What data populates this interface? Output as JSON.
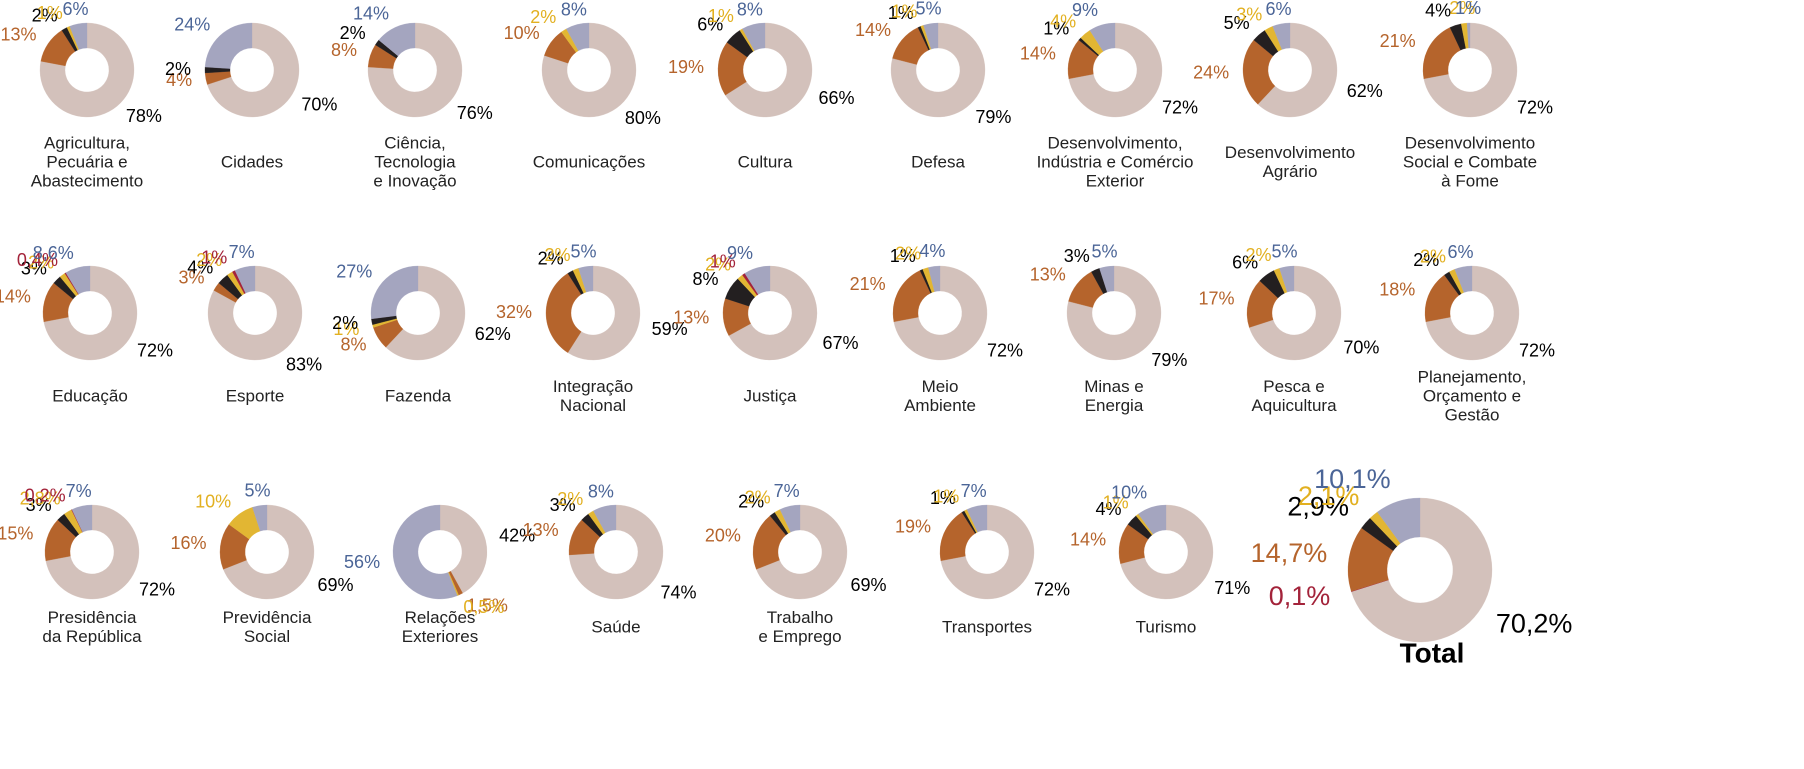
{
  "chart_data": [
    {
      "type": "donut",
      "title": [
        "Agricultura,",
        "Pecuária e",
        "Abastecimento"
      ],
      "values": [
        78,
        13,
        2,
        1,
        6
      ],
      "value_labels": [
        "78%",
        "13%",
        "2%",
        "1%",
        "6%"
      ],
      "colors": [
        "#d3c1bb",
        "#b5642c",
        "#231f20",
        "#e2b633",
        "#a4a5bf"
      ],
      "label_colors": [
        "#000000",
        "#b5642c",
        "#000000",
        "#e2b020",
        "#4b6597"
      ]
    },
    {
      "type": "donut",
      "title": [
        "Cidades"
      ],
      "values": [
        70,
        4,
        2,
        24
      ],
      "value_labels": [
        "70%",
        "4%",
        "2%",
        "24%"
      ],
      "colors": [
        "#d3c1bb",
        "#b5642c",
        "#231f20",
        "#a4a5bf"
      ],
      "label_colors": [
        "#000000",
        "#b5642c",
        "#000000",
        "#4b6597"
      ]
    },
    {
      "type": "donut",
      "title": [
        "Ciência,",
        "Tecnologia",
        "e Inovação"
      ],
      "values": [
        76,
        8,
        2,
        14
      ],
      "value_labels": [
        "76%",
        "8%",
        "2%",
        "14%"
      ],
      "colors": [
        "#d3c1bb",
        "#b5642c",
        "#231f20",
        "#a4a5bf"
      ],
      "label_colors": [
        "#000000",
        "#b5642c",
        "#000000",
        "#4b6597"
      ]
    },
    {
      "type": "donut",
      "title": [
        "Comunicações"
      ],
      "values": [
        80,
        10,
        2,
        8
      ],
      "value_labels": [
        "80%",
        "10%",
        "2%",
        "8%"
      ],
      "colors": [
        "#d3c1bb",
        "#b5642c",
        "#e2b633",
        "#a4a5bf"
      ],
      "label_colors": [
        "#000000",
        "#b5642c",
        "#e2b020",
        "#4b6597"
      ]
    },
    {
      "type": "donut",
      "title": [
        "Cultura"
      ],
      "values": [
        66,
        19,
        6,
        1,
        8
      ],
      "value_labels": [
        "66%",
        "19%",
        "6%",
        "1%",
        "8%"
      ],
      "colors": [
        "#d3c1bb",
        "#b5642c",
        "#231f20",
        "#e2b633",
        "#a4a5bf"
      ],
      "label_colors": [
        "#000000",
        "#b5642c",
        "#000000",
        "#e2b020",
        "#4b6597"
      ]
    },
    {
      "type": "donut",
      "title": [
        "Defesa"
      ],
      "values": [
        79,
        14,
        1,
        1,
        5
      ],
      "value_labels": [
        "79%",
        "14%",
        "1%",
        "1%",
        "5%"
      ],
      "colors": [
        "#d3c1bb",
        "#b5642c",
        "#231f20",
        "#e2b633",
        "#a4a5bf"
      ],
      "label_colors": [
        "#000000",
        "#b5642c",
        "#000000",
        "#e2b020",
        "#4b6597"
      ]
    },
    {
      "type": "donut",
      "title": [
        "Desenvolvimento,",
        "Indústria e Comércio",
        "Exterior"
      ],
      "values": [
        72,
        14,
        1,
        4,
        9
      ],
      "value_labels": [
        "72%",
        "14%",
        "1%",
        "4%",
        "9%"
      ],
      "colors": [
        "#d3c1bb",
        "#b5642c",
        "#231f20",
        "#e2b633",
        "#a4a5bf"
      ],
      "label_colors": [
        "#000000",
        "#b5642c",
        "#000000",
        "#e2b020",
        "#4b6597"
      ]
    },
    {
      "type": "donut",
      "title": [
        "Desenvolvimento",
        "Agrário"
      ],
      "values": [
        62,
        24,
        5,
        3,
        6
      ],
      "value_labels": [
        "62%",
        "24%",
        "5%",
        "3%",
        "6%"
      ],
      "colors": [
        "#d3c1bb",
        "#b5642c",
        "#231f20",
        "#e2b633",
        "#a4a5bf"
      ],
      "label_colors": [
        "#000000",
        "#b5642c",
        "#000000",
        "#e2b020",
        "#4b6597"
      ]
    },
    {
      "type": "donut",
      "title": [
        "Desenvolvimento",
        "Social e Combate",
        "à Fome"
      ],
      "values": [
        72,
        21,
        4,
        2,
        1
      ],
      "value_labels": [
        "72%",
        "21%",
        "4%",
        "2%",
        "1%"
      ],
      "colors": [
        "#d3c1bb",
        "#b5642c",
        "#231f20",
        "#e2b633",
        "#a4a5bf"
      ],
      "label_colors": [
        "#000000",
        "#b5642c",
        "#000000",
        "#e2b020",
        "#4b6597"
      ]
    },
    {
      "type": "donut",
      "title": [
        "Educação"
      ],
      "values": [
        72,
        14,
        3,
        2,
        0.4,
        8.6
      ],
      "value_labels": [
        "72%",
        "14%",
        "3%",
        "2%",
        "0,4%",
        "8,6%"
      ],
      "colors": [
        "#d3c1bb",
        "#b5642c",
        "#231f20",
        "#e2b633",
        "#a3233a",
        "#a4a5bf"
      ],
      "label_colors": [
        "#000000",
        "#b5642c",
        "#000000",
        "#e2b020",
        "#a3233a",
        "#4b6597"
      ]
    },
    {
      "type": "donut",
      "title": [
        "Esporte"
      ],
      "values": [
        83,
        3,
        4,
        2,
        1,
        7
      ],
      "value_labels": [
        "83%",
        "3%",
        "4%",
        "2%",
        "1%",
        "7%"
      ],
      "colors": [
        "#d3c1bb",
        "#b5642c",
        "#231f20",
        "#e2b633",
        "#a3233a",
        "#a4a5bf"
      ],
      "label_colors": [
        "#000000",
        "#b5642c",
        "#000000",
        "#e2b020",
        "#a3233a",
        "#4b6597"
      ]
    },
    {
      "type": "donut",
      "title": [
        "Fazenda"
      ],
      "values": [
        62,
        8,
        1,
        2,
        27
      ],
      "value_labels": [
        "62%",
        "8%",
        "1%",
        "2%",
        "27%"
      ],
      "colors": [
        "#d3c1bb",
        "#b5642c",
        "#e2b633",
        "#231f20",
        "#a4a5bf"
      ],
      "label_colors": [
        "#000000",
        "#b5642c",
        "#e2b020",
        "#000000",
        "#4b6597"
      ]
    },
    {
      "type": "donut",
      "title": [
        "Integração",
        "Nacional"
      ],
      "values": [
        59,
        32,
        2,
        2,
        5
      ],
      "value_labels": [
        "59%",
        "32%",
        "2%",
        "2%",
        "5%"
      ],
      "colors": [
        "#d3c1bb",
        "#b5642c",
        "#231f20",
        "#e2b633",
        "#a4a5bf"
      ],
      "label_colors": [
        "#000000",
        "#b5642c",
        "#000000",
        "#e2b020",
        "#4b6597"
      ]
    },
    {
      "type": "donut",
      "title": [
        "Justiça"
      ],
      "values": [
        67,
        13,
        8,
        2,
        1,
        9
      ],
      "value_labels": [
        "67%",
        "13%",
        "8%",
        "2%",
        "1%",
        "9%"
      ],
      "colors": [
        "#d3c1bb",
        "#b5642c",
        "#231f20",
        "#e2b633",
        "#a3233a",
        "#a4a5bf"
      ],
      "label_colors": [
        "#000000",
        "#b5642c",
        "#000000",
        "#e2b020",
        "#a3233a",
        "#4b6597"
      ]
    },
    {
      "type": "donut",
      "title": [
        "Meio",
        "Ambiente"
      ],
      "values": [
        72,
        21,
        1,
        2,
        4
      ],
      "value_labels": [
        "72%",
        "21%",
        "1%",
        "2%",
        "4%"
      ],
      "colors": [
        "#d3c1bb",
        "#b5642c",
        "#231f20",
        "#e2b633",
        "#a4a5bf"
      ],
      "label_colors": [
        "#000000",
        "#b5642c",
        "#000000",
        "#e2b020",
        "#4b6597"
      ]
    },
    {
      "type": "donut",
      "title": [
        "Minas e",
        "Energia"
      ],
      "values": [
        79,
        13,
        3,
        5
      ],
      "value_labels": [
        "79%",
        "13%",
        "3%",
        "5%"
      ],
      "colors": [
        "#d3c1bb",
        "#b5642c",
        "#231f20",
        "#a4a5bf"
      ],
      "label_colors": [
        "#000000",
        "#b5642c",
        "#000000",
        "#4b6597"
      ]
    },
    {
      "type": "donut",
      "title": [
        "Pesca e",
        "Aquicultura"
      ],
      "values": [
        70,
        17,
        6,
        2,
        5
      ],
      "value_labels": [
        "70%",
        "17%",
        "6%",
        "2%",
        "5%"
      ],
      "colors": [
        "#d3c1bb",
        "#b5642c",
        "#231f20",
        "#e2b633",
        "#a4a5bf"
      ],
      "label_colors": [
        "#000000",
        "#b5642c",
        "#000000",
        "#e2b020",
        "#4b6597"
      ]
    },
    {
      "type": "donut",
      "title": [
        "Planejamento,",
        "Orçamento e",
        "Gestão"
      ],
      "values": [
        72,
        18,
        2,
        2,
        6
      ],
      "value_labels": [
        "72%",
        "18%",
        "2%",
        "2%",
        "6%"
      ],
      "colors": [
        "#d3c1bb",
        "#b5642c",
        "#231f20",
        "#e2b633",
        "#a4a5bf"
      ],
      "label_colors": [
        "#000000",
        "#b5642c",
        "#000000",
        "#e2b020",
        "#4b6597"
      ]
    },
    {
      "type": "donut",
      "title": [
        "Presidência",
        "da República"
      ],
      "values": [
        72,
        15,
        3,
        2.8,
        0.2,
        7
      ],
      "value_labels": [
        "72%",
        "15%",
        "3%",
        "2,8%",
        "0,2%",
        "7%"
      ],
      "colors": [
        "#d3c1bb",
        "#b5642c",
        "#231f20",
        "#e2b633",
        "#a3233a",
        "#a4a5bf"
      ],
      "label_colors": [
        "#000000",
        "#b5642c",
        "#000000",
        "#e2b020",
        "#a3233a",
        "#4b6597"
      ]
    },
    {
      "type": "donut",
      "title": [
        "Previdência",
        "Social"
      ],
      "values": [
        69,
        16,
        10,
        5
      ],
      "value_labels": [
        "69%",
        "16%",
        "10%",
        "5%"
      ],
      "colors": [
        "#d3c1bb",
        "#b5642c",
        "#e2b633",
        "#a4a5bf"
      ],
      "label_colors": [
        "#000000",
        "#b5642c",
        "#e2b020",
        "#4b6597"
      ]
    },
    {
      "type": "donut",
      "title": [
        "Relações",
        "Exteriores"
      ],
      "values": [
        42,
        1.5,
        0.5,
        56
      ],
      "value_labels": [
        "42%",
        "1,5%",
        "0,5%",
        "56%"
      ],
      "colors": [
        "#d3c1bb",
        "#b5642c",
        "#e2b633",
        "#a4a5bf"
      ],
      "label_colors": [
        "#000000",
        "#b5642c",
        "#e2b020",
        "#4b6597"
      ]
    },
    {
      "type": "donut",
      "title": [
        "Saúde"
      ],
      "values": [
        74,
        13,
        3,
        2,
        8
      ],
      "value_labels": [
        "74%",
        "13%",
        "3%",
        "2%",
        "8%"
      ],
      "colors": [
        "#d3c1bb",
        "#b5642c",
        "#231f20",
        "#e2b633",
        "#a4a5bf"
      ],
      "label_colors": [
        "#000000",
        "#b5642c",
        "#000000",
        "#e2b020",
        "#4b6597"
      ]
    },
    {
      "type": "donut",
      "title": [
        "Trabalho",
        "e Emprego"
      ],
      "values": [
        69,
        20,
        2,
        2,
        7
      ],
      "value_labels": [
        "69%",
        "20%",
        "2%",
        "2%",
        "7%"
      ],
      "colors": [
        "#d3c1bb",
        "#b5642c",
        "#231f20",
        "#e2b633",
        "#a4a5bf"
      ],
      "label_colors": [
        "#000000",
        "#b5642c",
        "#000000",
        "#e2b020",
        "#4b6597"
      ]
    },
    {
      "type": "donut",
      "title": [
        "Transportes"
      ],
      "values": [
        72,
        19,
        1,
        1,
        7
      ],
      "value_labels": [
        "72%",
        "19%",
        "1%",
        "1%",
        "7%"
      ],
      "colors": [
        "#d3c1bb",
        "#b5642c",
        "#231f20",
        "#e2b633",
        "#a4a5bf"
      ],
      "label_colors": [
        "#000000",
        "#b5642c",
        "#000000",
        "#e2b020",
        "#4b6597"
      ]
    },
    {
      "type": "donut",
      "title": [
        "Turismo"
      ],
      "values": [
        71,
        14,
        4,
        1,
        10
      ],
      "value_labels": [
        "71%",
        "14%",
        "4%",
        "1%",
        "10%"
      ],
      "colors": [
        "#d3c1bb",
        "#b5642c",
        "#231f20",
        "#e2b633",
        "#a4a5bf"
      ],
      "label_colors": [
        "#000000",
        "#b5642c",
        "#000000",
        "#e2b020",
        "#4b6597"
      ]
    },
    {
      "type": "donut",
      "title": [
        "Total"
      ],
      "values": [
        70.2,
        0.1,
        14.7,
        2.9,
        2.1,
        10.1
      ],
      "value_labels": [
        "70,2%",
        "0,1%",
        "14,7%",
        "2,9%",
        "2,1%",
        "10,1%"
      ],
      "colors": [
        "#d3c1bb",
        "#a3233a",
        "#b5642c",
        "#231f20",
        "#e2b633",
        "#a4a5bf"
      ],
      "label_colors": [
        "#000000",
        "#a3233a",
        "#b5642c",
        "#000000",
        "#e2b020",
        "#4b6597"
      ]
    }
  ]
}
